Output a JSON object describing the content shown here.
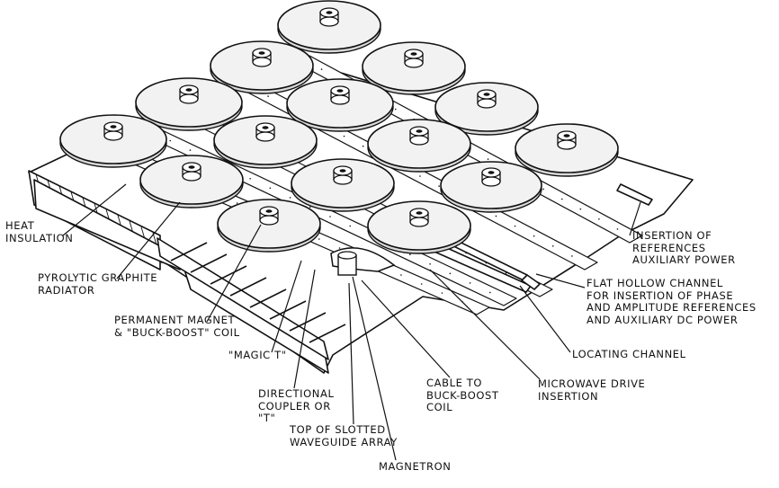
{
  "labels": {
    "heat_insulation": [
      "HEAT",
      "INSULATION"
    ],
    "pyrolytic": [
      "PYROLYTIC GRAPHITE",
      "RADIATOR"
    ],
    "permanent_magnet": [
      "PERMANENT MAGNET",
      "& \"BUCK-BOOST\" COIL"
    ],
    "magic_t": [
      "\"MAGIC T\""
    ],
    "directional_coupler": [
      "DIRECTIONAL",
      "COUPLER OR",
      "\"T\""
    ],
    "top_slotted": [
      "TOP OF SLOTTED",
      "WAVEGUIDE ARRAY"
    ],
    "magnetron": [
      "MAGNETRON"
    ],
    "cable": [
      "CABLE TO",
      "BUCK-BOOST",
      "COIL"
    ],
    "microwave": [
      "MICROWAVE DRIVE",
      "INSERTION"
    ],
    "locating": [
      "LOCATING CHANNEL"
    ],
    "flat_hollow": [
      "FLAT HOLLOW CHANNEL",
      "FOR INSERTION OF PHASE",
      "AND AMPLITUDE REFERENCES",
      "AND AUXILIARY DC POWER"
    ],
    "insertion": [
      "INSERTION OF",
      "REFERENCES",
      "AUXILIARY POWER"
    ]
  },
  "colors": {
    "ink": "#111111",
    "paper": "#ffffff",
    "disk": "#f2f2f2"
  }
}
